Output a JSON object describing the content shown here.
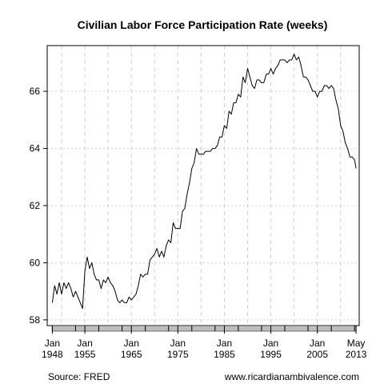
{
  "chart_data": {
    "type": "line",
    "title": "Civilian Labor Force Participation Rate (weeks)",
    "xlabel": "",
    "ylabel": "",
    "xlim": [
      1946.9,
      2014.0
    ],
    "ylim": [
      57.8,
      67.6
    ],
    "yticks": [
      58,
      60,
      62,
      64,
      66
    ],
    "xticks": [
      {
        "pos": 1948.0,
        "line1": "Jan",
        "line2": "1948"
      },
      {
        "pos": 1955.0,
        "line1": "Jan",
        "line2": "1955"
      },
      {
        "pos": 1965.0,
        "line1": "Jan",
        "line2": "1965"
      },
      {
        "pos": 1975.0,
        "line1": "Jan",
        "line2": "1975"
      },
      {
        "pos": 1985.0,
        "line1": "Jan",
        "line2": "1985"
      },
      {
        "pos": 1995.0,
        "line1": "Jan",
        "line2": "1995"
      },
      {
        "pos": 2005.0,
        "line1": "Jan",
        "line2": "2005"
      },
      {
        "pos": 2013.33,
        "line1": "May",
        "line2": "2013"
      }
    ],
    "grid": true,
    "series": [
      {
        "name": "",
        "color": "#000000",
        "x": [
          1948.0,
          1948.5,
          1949.0,
          1949.5,
          1950.0,
          1950.5,
          1951.0,
          1951.5,
          1952.0,
          1952.5,
          1953.0,
          1953.5,
          1954.0,
          1954.5,
          1955.0,
          1955.5,
          1956.0,
          1956.5,
          1957.0,
          1957.5,
          1958.0,
          1958.5,
          1959.0,
          1959.5,
          1960.0,
          1960.5,
          1961.0,
          1961.5,
          1962.0,
          1962.5,
          1963.0,
          1963.5,
          1964.0,
          1964.5,
          1965.0,
          1965.5,
          1966.0,
          1966.5,
          1967.0,
          1967.5,
          1968.0,
          1968.5,
          1969.0,
          1969.5,
          1970.0,
          1970.5,
          1971.0,
          1971.5,
          1972.0,
          1972.5,
          1973.0,
          1973.5,
          1974.0,
          1974.5,
          1975.0,
          1975.5,
          1976.0,
          1976.5,
          1977.0,
          1977.5,
          1978.0,
          1978.5,
          1979.0,
          1979.5,
          1980.0,
          1980.5,
          1981.0,
          1981.5,
          1982.0,
          1982.5,
          1983.0,
          1983.5,
          1984.0,
          1984.5,
          1985.0,
          1985.5,
          1986.0,
          1986.5,
          1987.0,
          1987.5,
          1988.0,
          1988.5,
          1989.0,
          1989.5,
          1990.0,
          1990.5,
          1991.0,
          1991.5,
          1992.0,
          1992.5,
          1993.0,
          1993.5,
          1994.0,
          1994.5,
          1995.0,
          1995.5,
          1996.0,
          1996.5,
          1997.0,
          1997.5,
          1998.0,
          1998.5,
          1999.0,
          1999.5,
          2000.0,
          2000.5,
          2001.0,
          2001.5,
          2002.0,
          2002.5,
          2003.0,
          2003.5,
          2004.0,
          2004.5,
          2005.0,
          2005.5,
          2006.0,
          2006.5,
          2007.0,
          2007.5,
          2008.0,
          2008.5,
          2009.0,
          2009.5,
          2010.0,
          2010.5,
          2011.0,
          2011.5,
          2012.0,
          2012.5,
          2013.0,
          2013.33
        ],
        "values": [
          58.6,
          59.2,
          58.9,
          59.3,
          58.9,
          59.3,
          59.1,
          59.3,
          59.1,
          58.8,
          59.0,
          58.8,
          58.6,
          58.4,
          59.7,
          60.2,
          59.8,
          60.0,
          59.6,
          59.4,
          59.4,
          59.1,
          59.4,
          59.3,
          59.5,
          59.3,
          59.2,
          59.0,
          58.7,
          58.6,
          58.7,
          58.6,
          58.6,
          58.8,
          58.7,
          58.8,
          58.9,
          59.2,
          59.6,
          59.5,
          59.6,
          59.6,
          60.1,
          60.2,
          60.3,
          60.5,
          60.2,
          60.4,
          60.2,
          60.6,
          60.8,
          60.7,
          61.4,
          61.2,
          61.2,
          61.2,
          61.8,
          61.9,
          62.4,
          62.8,
          63.3,
          63.5,
          64.0,
          63.8,
          63.8,
          63.8,
          63.9,
          63.9,
          63.9,
          64.0,
          64.0,
          64.1,
          64.4,
          64.4,
          64.8,
          64.7,
          65.3,
          65.2,
          65.6,
          65.6,
          65.9,
          65.8,
          66.5,
          66.3,
          66.8,
          66.5,
          66.2,
          66.1,
          66.4,
          66.4,
          66.3,
          66.3,
          66.6,
          66.6,
          66.8,
          66.6,
          66.8,
          66.9,
          67.1,
          67.1,
          67.1,
          67.0,
          67.1,
          67.1,
          67.3,
          67.1,
          67.2,
          66.9,
          66.5,
          66.5,
          66.4,
          66.2,
          66.0,
          66.0,
          65.8,
          66.0,
          66.0,
          66.2,
          66.2,
          66.1,
          66.2,
          66.1,
          65.7,
          65.4,
          64.8,
          64.6,
          64.2,
          64.0,
          63.7,
          63.7,
          63.6,
          63.3
        ]
      }
    ]
  },
  "footer": {
    "source": "Source: FRED",
    "site": "www.ricardianambivalence.com"
  }
}
